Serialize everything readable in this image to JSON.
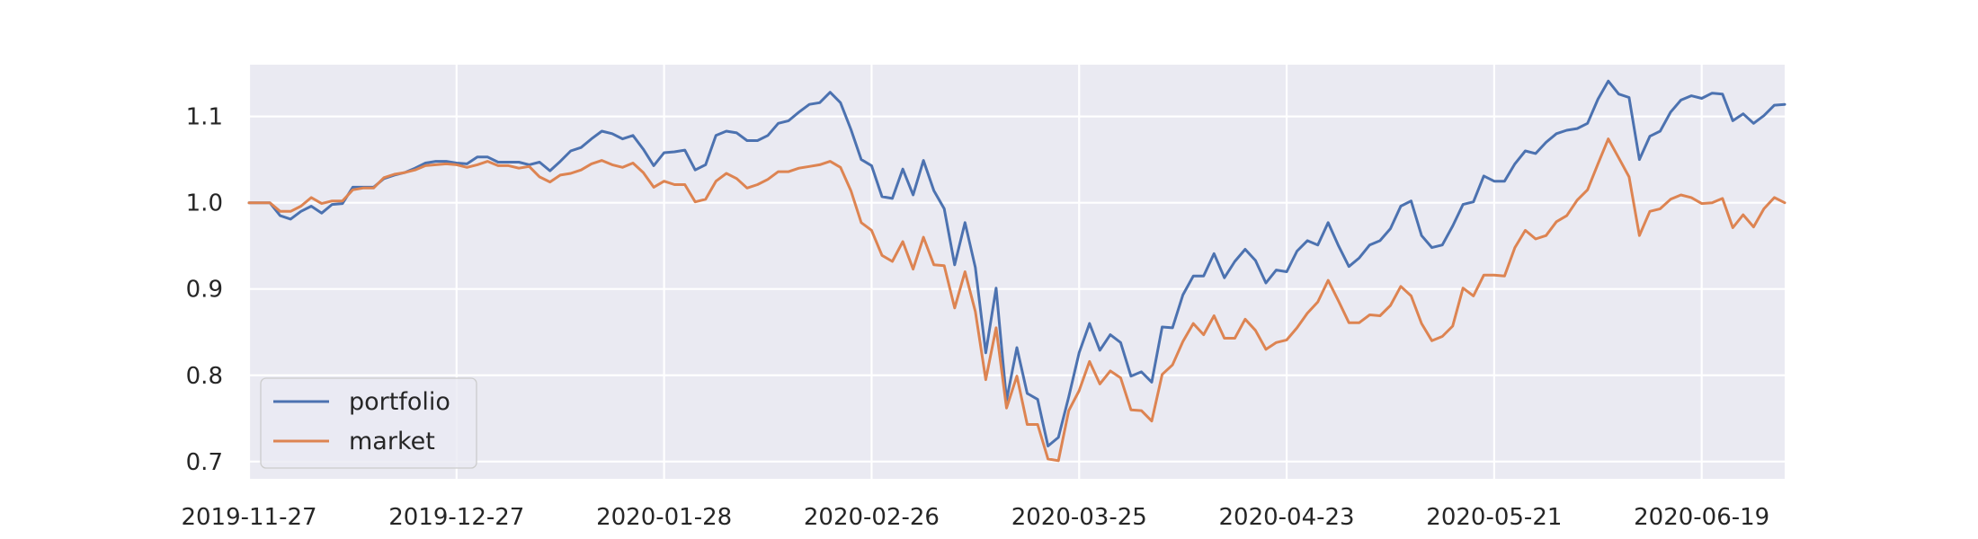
{
  "chart_data": {
    "type": "line",
    "title": "",
    "xlabel": "",
    "ylabel": "",
    "ylim": [
      0.68,
      1.16
    ],
    "yticks": [
      0.7,
      0.8,
      0.9,
      1.0,
      1.1
    ],
    "ytick_labels": [
      "0.7",
      "0.8",
      "0.9",
      "1.0",
      "1.1"
    ],
    "xticks": [
      "2019-11-27",
      "2019-12-27",
      "2020-01-28",
      "2020-02-26",
      "2020-03-25",
      "2020-04-23",
      "2020-05-21",
      "2020-06-19"
    ],
    "grid": true,
    "legend_position": "lower-left",
    "series": [
      {
        "name": "portfolio",
        "color": "#4c72b0",
        "values": [
          1.0,
          1.0,
          1.0,
          0.985,
          0.981,
          0.99,
          0.996,
          0.988,
          0.998,
          0.999,
          1.018,
          1.018,
          1.018,
          1.028,
          1.032,
          1.035,
          1.04,
          1.046,
          1.048,
          1.048,
          1.046,
          1.045,
          1.053,
          1.053,
          1.047,
          1.047,
          1.047,
          1.044,
          1.047,
          1.037,
          1.048,
          1.06,
          1.064,
          1.074,
          1.083,
          1.08,
          1.074,
          1.078,
          1.062,
          1.043,
          1.058,
          1.059,
          1.061,
          1.038,
          1.044,
          1.078,
          1.083,
          1.081,
          1.072,
          1.072,
          1.078,
          1.092,
          1.095,
          1.105,
          1.114,
          1.116,
          1.128,
          1.116,
          1.085,
          1.05,
          1.043,
          1.007,
          1.005,
          1.039,
          1.009,
          1.049,
          1.014,
          0.993,
          0.928,
          0.977,
          0.925,
          0.826,
          0.901,
          0.771,
          0.832,
          0.779,
          0.772,
          0.718,
          0.728,
          0.775,
          0.826,
          0.86,
          0.829,
          0.847,
          0.838,
          0.799,
          0.804,
          0.792,
          0.856,
          0.855,
          0.893,
          0.915,
          0.915,
          0.941,
          0.913,
          0.932,
          0.946,
          0.933,
          0.907,
          0.922,
          0.92,
          0.944,
          0.956,
          0.951,
          0.977,
          0.95,
          0.926,
          0.936,
          0.951,
          0.956,
          0.97,
          0.996,
          1.002,
          0.962,
          0.948,
          0.951,
          0.973,
          0.998,
          1.001,
          1.031,
          1.025,
          1.025,
          1.045,
          1.06,
          1.057,
          1.07,
          1.08,
          1.084,
          1.086,
          1.092,
          1.12,
          1.141,
          1.126,
          1.122,
          1.05,
          1.077,
          1.083,
          1.105,
          1.119,
          1.124,
          1.121,
          1.127,
          1.126,
          1.095,
          1.103,
          1.092,
          1.101,
          1.113,
          1.114
        ]
      },
      {
        "name": "market",
        "color": "#dd8452",
        "values": [
          1.0,
          1.0,
          1.0,
          0.99,
          0.99,
          0.996,
          1.006,
          0.999,
          1.002,
          1.002,
          1.015,
          1.017,
          1.017,
          1.029,
          1.033,
          1.035,
          1.038,
          1.043,
          1.044,
          1.045,
          1.044,
          1.041,
          1.044,
          1.048,
          1.043,
          1.043,
          1.04,
          1.042,
          1.03,
          1.024,
          1.032,
          1.034,
          1.038,
          1.045,
          1.049,
          1.044,
          1.041,
          1.046,
          1.035,
          1.018,
          1.025,
          1.021,
          1.021,
          1.001,
          1.004,
          1.025,
          1.034,
          1.028,
          1.017,
          1.021,
          1.027,
          1.036,
          1.036,
          1.04,
          1.042,
          1.044,
          1.048,
          1.041,
          1.014,
          0.977,
          0.968,
          0.939,
          0.932,
          0.955,
          0.923,
          0.96,
          0.928,
          0.927,
          0.878,
          0.92,
          0.874,
          0.795,
          0.855,
          0.762,
          0.799,
          0.743,
          0.743,
          0.703,
          0.701,
          0.759,
          0.782,
          0.816,
          0.79,
          0.805,
          0.797,
          0.76,
          0.759,
          0.747,
          0.801,
          0.812,
          0.839,
          0.86,
          0.847,
          0.869,
          0.843,
          0.843,
          0.865,
          0.852,
          0.83,
          0.838,
          0.841,
          0.855,
          0.872,
          0.885,
          0.91,
          0.886,
          0.861,
          0.861,
          0.87,
          0.869,
          0.881,
          0.903,
          0.892,
          0.86,
          0.84,
          0.845,
          0.857,
          0.901,
          0.892,
          0.916,
          0.916,
          0.915,
          0.948,
          0.968,
          0.958,
          0.962,
          0.978,
          0.985,
          1.003,
          1.015,
          1.045,
          1.074,
          1.052,
          1.03,
          0.962,
          0.99,
          0.993,
          1.004,
          1.009,
          1.006,
          0.999,
          1.0,
          1.005,
          0.971,
          0.986,
          0.972,
          0.993,
          1.006,
          1.0
        ]
      }
    ]
  }
}
